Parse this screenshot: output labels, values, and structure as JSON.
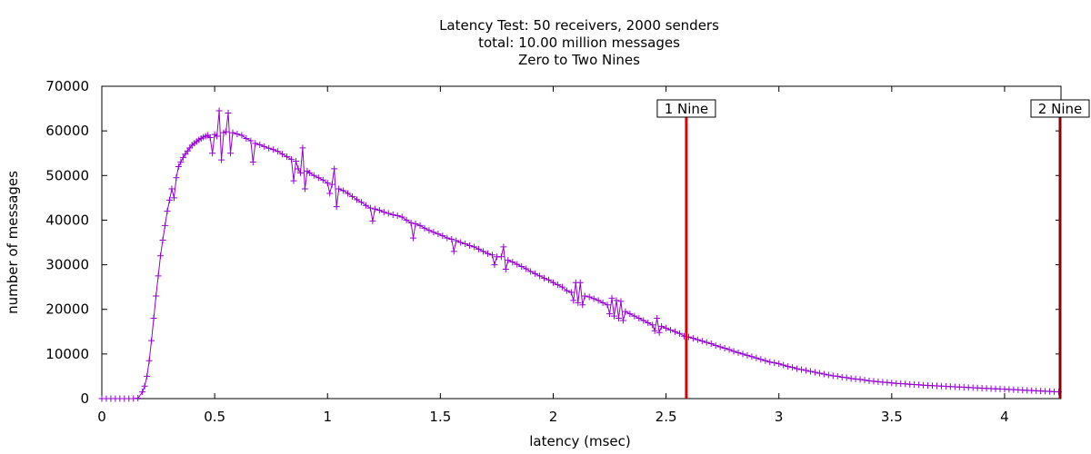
{
  "chart_data": {
    "type": "line",
    "title_lines": [
      "Latency Test: 50 receivers, 2000 senders",
      "total: 10.00 million messages",
      "Zero to Two Nines"
    ],
    "xlabel": "latency (msec)",
    "ylabel": "number of messages",
    "xlim": [
      0,
      4.25
    ],
    "ylim": [
      0,
      70000
    ],
    "x_ticks": [
      0,
      0.5,
      1,
      1.5,
      2,
      2.5,
      3,
      3.5,
      4
    ],
    "x_tick_labels": [
      "0",
      "0.5",
      "1",
      "1.5",
      "2",
      "2.5",
      "3",
      "3.5",
      "4"
    ],
    "y_ticks": [
      0,
      10000,
      20000,
      30000,
      40000,
      50000,
      60000,
      70000
    ],
    "y_tick_labels": [
      "0",
      "10000",
      "20000",
      "30000",
      "40000",
      "50000",
      "60000",
      "70000"
    ],
    "series": [
      {
        "color": "#9400d3",
        "marker": "plus",
        "points": [
          [
            0.0,
            0
          ],
          [
            0.02,
            0
          ],
          [
            0.04,
            0
          ],
          [
            0.06,
            0
          ],
          [
            0.08,
            0
          ],
          [
            0.1,
            0
          ],
          [
            0.12,
            0
          ],
          [
            0.14,
            0
          ],
          [
            0.16,
            100
          ],
          [
            0.18,
            1500
          ],
          [
            0.19,
            2800
          ],
          [
            0.2,
            5000
          ],
          [
            0.21,
            8500
          ],
          [
            0.22,
            13000
          ],
          [
            0.23,
            18000
          ],
          [
            0.24,
            23000
          ],
          [
            0.25,
            27500
          ],
          [
            0.26,
            32000
          ],
          [
            0.27,
            35500
          ],
          [
            0.28,
            38800
          ],
          [
            0.29,
            42000
          ],
          [
            0.3,
            44500
          ],
          [
            0.31,
            47000
          ],
          [
            0.32,
            45000
          ],
          [
            0.33,
            49500
          ],
          [
            0.34,
            52000
          ],
          [
            0.35,
            53000
          ],
          [
            0.36,
            54000
          ],
          [
            0.37,
            54800
          ],
          [
            0.38,
            55500
          ],
          [
            0.39,
            56200
          ],
          [
            0.4,
            56800
          ],
          [
            0.41,
            57200
          ],
          [
            0.42,
            57600
          ],
          [
            0.43,
            58000
          ],
          [
            0.44,
            58300
          ],
          [
            0.45,
            58600
          ],
          [
            0.46,
            58800
          ],
          [
            0.47,
            59000
          ],
          [
            0.48,
            58500
          ],
          [
            0.49,
            55000
          ],
          [
            0.5,
            59200
          ],
          [
            0.51,
            58800
          ],
          [
            0.52,
            64500
          ],
          [
            0.53,
            53500
          ],
          [
            0.54,
            59600
          ],
          [
            0.55,
            59800
          ],
          [
            0.56,
            64000
          ],
          [
            0.57,
            55000
          ],
          [
            0.58,
            59600
          ],
          [
            0.6,
            59300
          ],
          [
            0.62,
            59000
          ],
          [
            0.64,
            58300
          ],
          [
            0.66,
            57800
          ],
          [
            0.67,
            53000
          ],
          [
            0.68,
            57200
          ],
          [
            0.7,
            56900
          ],
          [
            0.72,
            56500
          ],
          [
            0.74,
            56100
          ],
          [
            0.76,
            55800
          ],
          [
            0.78,
            55400
          ],
          [
            0.8,
            54800
          ],
          [
            0.82,
            54200
          ],
          [
            0.84,
            53600
          ],
          [
            0.85,
            48800
          ],
          [
            0.86,
            53200
          ],
          [
            0.87,
            51500
          ],
          [
            0.88,
            50600
          ],
          [
            0.89,
            56200
          ],
          [
            0.9,
            47000
          ],
          [
            0.91,
            51000
          ],
          [
            0.92,
            50600
          ],
          [
            0.94,
            50000
          ],
          [
            0.96,
            49500
          ],
          [
            0.98,
            49000
          ],
          [
            1.0,
            48300
          ],
          [
            1.01,
            46000
          ],
          [
            1.02,
            48000
          ],
          [
            1.03,
            51500
          ],
          [
            1.04,
            43000
          ],
          [
            1.05,
            47000
          ],
          [
            1.07,
            46600
          ],
          [
            1.09,
            46000
          ],
          [
            1.11,
            45300
          ],
          [
            1.13,
            44600
          ],
          [
            1.15,
            44000
          ],
          [
            1.17,
            43300
          ],
          [
            1.19,
            42700
          ],
          [
            1.2,
            39800
          ],
          [
            1.21,
            42500
          ],
          [
            1.23,
            42200
          ],
          [
            1.25,
            41800
          ],
          [
            1.27,
            41500
          ],
          [
            1.29,
            41200
          ],
          [
            1.31,
            41000
          ],
          [
            1.33,
            40700
          ],
          [
            1.35,
            40000
          ],
          [
            1.37,
            39400
          ],
          [
            1.38,
            36000
          ],
          [
            1.39,
            39200
          ],
          [
            1.41,
            38800
          ],
          [
            1.43,
            38200
          ],
          [
            1.45,
            37700
          ],
          [
            1.47,
            37300
          ],
          [
            1.49,
            36900
          ],
          [
            1.51,
            36500
          ],
          [
            1.53,
            36000
          ],
          [
            1.55,
            35700
          ],
          [
            1.56,
            33000
          ],
          [
            1.57,
            35400
          ],
          [
            1.59,
            35000
          ],
          [
            1.61,
            34700
          ],
          [
            1.63,
            34300
          ],
          [
            1.65,
            34000
          ],
          [
            1.67,
            33500
          ],
          [
            1.69,
            33000
          ],
          [
            1.71,
            32500
          ],
          [
            1.73,
            32200
          ],
          [
            1.74,
            30000
          ],
          [
            1.75,
            31800
          ],
          [
            1.77,
            31800
          ],
          [
            1.78,
            34000
          ],
          [
            1.79,
            29000
          ],
          [
            1.8,
            31000
          ],
          [
            1.82,
            30600
          ],
          [
            1.84,
            30100
          ],
          [
            1.86,
            29600
          ],
          [
            1.88,
            29100
          ],
          [
            1.9,
            28500
          ],
          [
            1.92,
            28000
          ],
          [
            1.94,
            27500
          ],
          [
            1.96,
            27000
          ],
          [
            1.98,
            26600
          ],
          [
            2.0,
            26000
          ],
          [
            2.02,
            25500
          ],
          [
            2.04,
            25000
          ],
          [
            2.06,
            24200
          ],
          [
            2.08,
            23800
          ],
          [
            2.09,
            22000
          ],
          [
            2.1,
            26000
          ],
          [
            2.11,
            21500
          ],
          [
            2.12,
            26000
          ],
          [
            2.13,
            21000
          ],
          [
            2.14,
            23000
          ],
          [
            2.16,
            22800
          ],
          [
            2.18,
            22400
          ],
          [
            2.2,
            22000
          ],
          [
            2.22,
            21500
          ],
          [
            2.24,
            21000
          ],
          [
            2.25,
            19000
          ],
          [
            2.26,
            22500
          ],
          [
            2.27,
            18500
          ],
          [
            2.28,
            22000
          ],
          [
            2.29,
            18000
          ],
          [
            2.3,
            21800
          ],
          [
            2.31,
            17500
          ],
          [
            2.32,
            19500
          ],
          [
            2.34,
            19000
          ],
          [
            2.36,
            18500
          ],
          [
            2.38,
            18000
          ],
          [
            2.4,
            17500
          ],
          [
            2.42,
            17000
          ],
          [
            2.44,
            16500
          ],
          [
            2.45,
            15200
          ],
          [
            2.46,
            18000
          ],
          [
            2.47,
            14800
          ],
          [
            2.48,
            16200
          ],
          [
            2.5,
            15800
          ],
          [
            2.52,
            15400
          ],
          [
            2.54,
            15000
          ],
          [
            2.56,
            14600
          ],
          [
            2.58,
            14000
          ],
          [
            2.6,
            13800
          ],
          [
            2.62,
            13500
          ],
          [
            2.64,
            13200
          ],
          [
            2.66,
            12900
          ],
          [
            2.68,
            12600
          ],
          [
            2.7,
            12300
          ],
          [
            2.72,
            11900
          ],
          [
            2.74,
            11600
          ],
          [
            2.76,
            11300
          ],
          [
            2.78,
            11000
          ],
          [
            2.8,
            10600
          ],
          [
            2.82,
            10300
          ],
          [
            2.84,
            10000
          ],
          [
            2.86,
            9700
          ],
          [
            2.88,
            9400
          ],
          [
            2.9,
            9100
          ],
          [
            2.92,
            8800
          ],
          [
            2.94,
            8500
          ],
          [
            2.96,
            8200
          ],
          [
            2.98,
            8000
          ],
          [
            3.0,
            7800
          ],
          [
            3.02,
            7500
          ],
          [
            3.04,
            7200
          ],
          [
            3.06,
            7000
          ],
          [
            3.08,
            6700
          ],
          [
            3.1,
            6500
          ],
          [
            3.12,
            6300
          ],
          [
            3.14,
            6100
          ],
          [
            3.16,
            5900
          ],
          [
            3.18,
            5700
          ],
          [
            3.2,
            5500
          ],
          [
            3.22,
            5300
          ],
          [
            3.24,
            5100
          ],
          [
            3.26,
            5000
          ],
          [
            3.28,
            4800
          ],
          [
            3.3,
            4700
          ],
          [
            3.32,
            4500
          ],
          [
            3.34,
            4400
          ],
          [
            3.36,
            4300
          ],
          [
            3.38,
            4150
          ],
          [
            3.4,
            4000
          ],
          [
            3.42,
            3900
          ],
          [
            3.44,
            3800
          ],
          [
            3.46,
            3700
          ],
          [
            3.48,
            3600
          ],
          [
            3.5,
            3500
          ],
          [
            3.52,
            3400
          ],
          [
            3.54,
            3350
          ],
          [
            3.56,
            3300
          ],
          [
            3.58,
            3200
          ],
          [
            3.6,
            3150
          ],
          [
            3.62,
            3100
          ],
          [
            3.64,
            3000
          ],
          [
            3.66,
            2950
          ],
          [
            3.68,
            2900
          ],
          [
            3.7,
            2850
          ],
          [
            3.72,
            2800
          ],
          [
            3.74,
            2750
          ],
          [
            3.76,
            2700
          ],
          [
            3.78,
            2650
          ],
          [
            3.8,
            2600
          ],
          [
            3.82,
            2550
          ],
          [
            3.84,
            2500
          ],
          [
            3.86,
            2450
          ],
          [
            3.88,
            2400
          ],
          [
            3.9,
            2350
          ],
          [
            3.92,
            2300
          ],
          [
            3.94,
            2250
          ],
          [
            3.96,
            2200
          ],
          [
            3.98,
            2150
          ],
          [
            4.0,
            2100
          ],
          [
            4.02,
            2050
          ],
          [
            4.04,
            2000
          ],
          [
            4.06,
            1950
          ],
          [
            4.08,
            1900
          ],
          [
            4.1,
            1850
          ],
          [
            4.12,
            1800
          ],
          [
            4.14,
            1750
          ],
          [
            4.16,
            1700
          ],
          [
            4.18,
            1650
          ],
          [
            4.2,
            1600
          ],
          [
            4.22,
            1550
          ],
          [
            4.24,
            1500
          ]
        ]
      }
    ],
    "markers": [
      {
        "label": "1 Nine",
        "x": 2.59,
        "color": "#e00000"
      },
      {
        "label": "2 Nine",
        "x": 4.25,
        "color": "#8b0000"
      }
    ],
    "grid": false,
    "legend": "none"
  }
}
